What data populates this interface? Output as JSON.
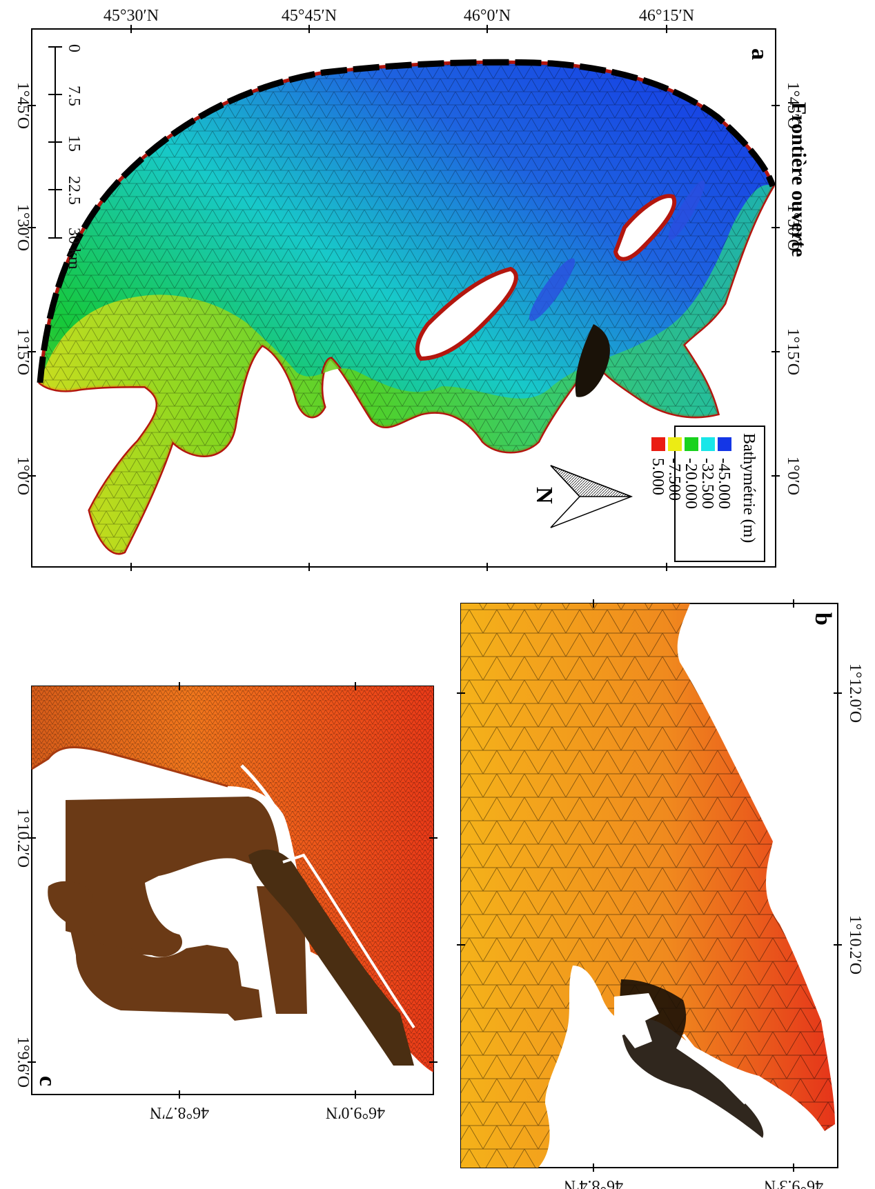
{
  "panels": {
    "a": {
      "letter": "a",
      "boundary_label": "Frontière ouverte",
      "lat_ticks": [
        "45°30′N",
        "45°45′N",
        "46°0′N",
        "46°15′N"
      ],
      "lon_ticks": [
        "1°45′O",
        "1°30′O",
        "1°15′O",
        "1°0′O"
      ],
      "scale_ticks": [
        "0",
        "7.5",
        "15",
        "22.5",
        "30 km"
      ],
      "north_label": "N",
      "legend": {
        "title": "Bathymétrie (m)",
        "items": [
          {
            "value": "-45.000",
            "color": "#1436e6"
          },
          {
            "value": "-32.500",
            "color": "#19e6e8"
          },
          {
            "value": "-20.000",
            "color": "#19d21e"
          },
          {
            "value": "-7.500",
            "color": "#ecec14"
          },
          {
            "value": "5.000",
            "color": "#ea1c12"
          }
        ]
      }
    },
    "b": {
      "letter": "b",
      "lon_ticks": [
        "1°12.0′O",
        "1°10.2′O"
      ],
      "lat_ticks": [
        "46°8.4′N",
        "46°9.3′N"
      ]
    },
    "c": {
      "letter": "c",
      "lon_ticks": [
        "1°10.2′O",
        "1°9.6′O"
      ],
      "lat_ticks": [
        "46°8.7′N",
        "46°9.0′N"
      ]
    }
  }
}
